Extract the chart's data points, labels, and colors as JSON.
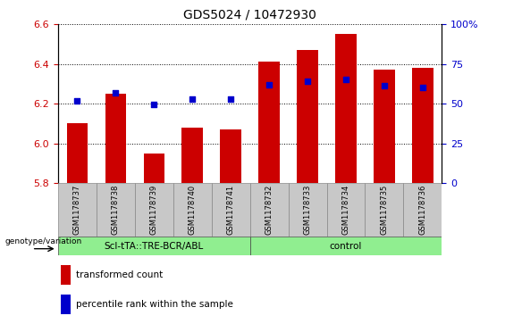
{
  "title": "GDS5024 / 10472930",
  "samples": [
    "GSM1178737",
    "GSM1178738",
    "GSM1178739",
    "GSM1178740",
    "GSM1178741",
    "GSM1178732",
    "GSM1178733",
    "GSM1178734",
    "GSM1178735",
    "GSM1178736"
  ],
  "red_values": [
    6.1,
    6.25,
    5.95,
    6.08,
    6.07,
    6.41,
    6.47,
    6.55,
    6.37,
    6.38
  ],
  "blue_values": [
    6.215,
    6.255,
    6.195,
    6.225,
    6.225,
    6.295,
    6.315,
    6.32,
    6.29,
    6.28
  ],
  "ylim_left": [
    5.8,
    6.6
  ],
  "ylim_right": [
    0,
    100
  ],
  "y_ticks_left": [
    5.8,
    6.0,
    6.2,
    6.4,
    6.6
  ],
  "y_ticks_right": [
    0,
    25,
    50,
    75,
    100
  ],
  "bar_bottom": 5.8,
  "bar_color": "#CC0000",
  "dot_color": "#0000CC",
  "group1_label": "Scl-tTA::TRE-BCR/ABL",
  "group2_label": "control",
  "group1_count": 5,
  "group2_count": 5,
  "genotype_label": "genotype/variation",
  "legend_red": "transformed count",
  "legend_blue": "percentile rank within the sample",
  "group_color": "#90EE90",
  "tick_label_color_left": "#CC0000",
  "tick_label_color_right": "#0000CC",
  "title_fontsize": 10,
  "bar_width": 0.55,
  "dot_size": 25,
  "sample_box_color": "#C8C8C8"
}
